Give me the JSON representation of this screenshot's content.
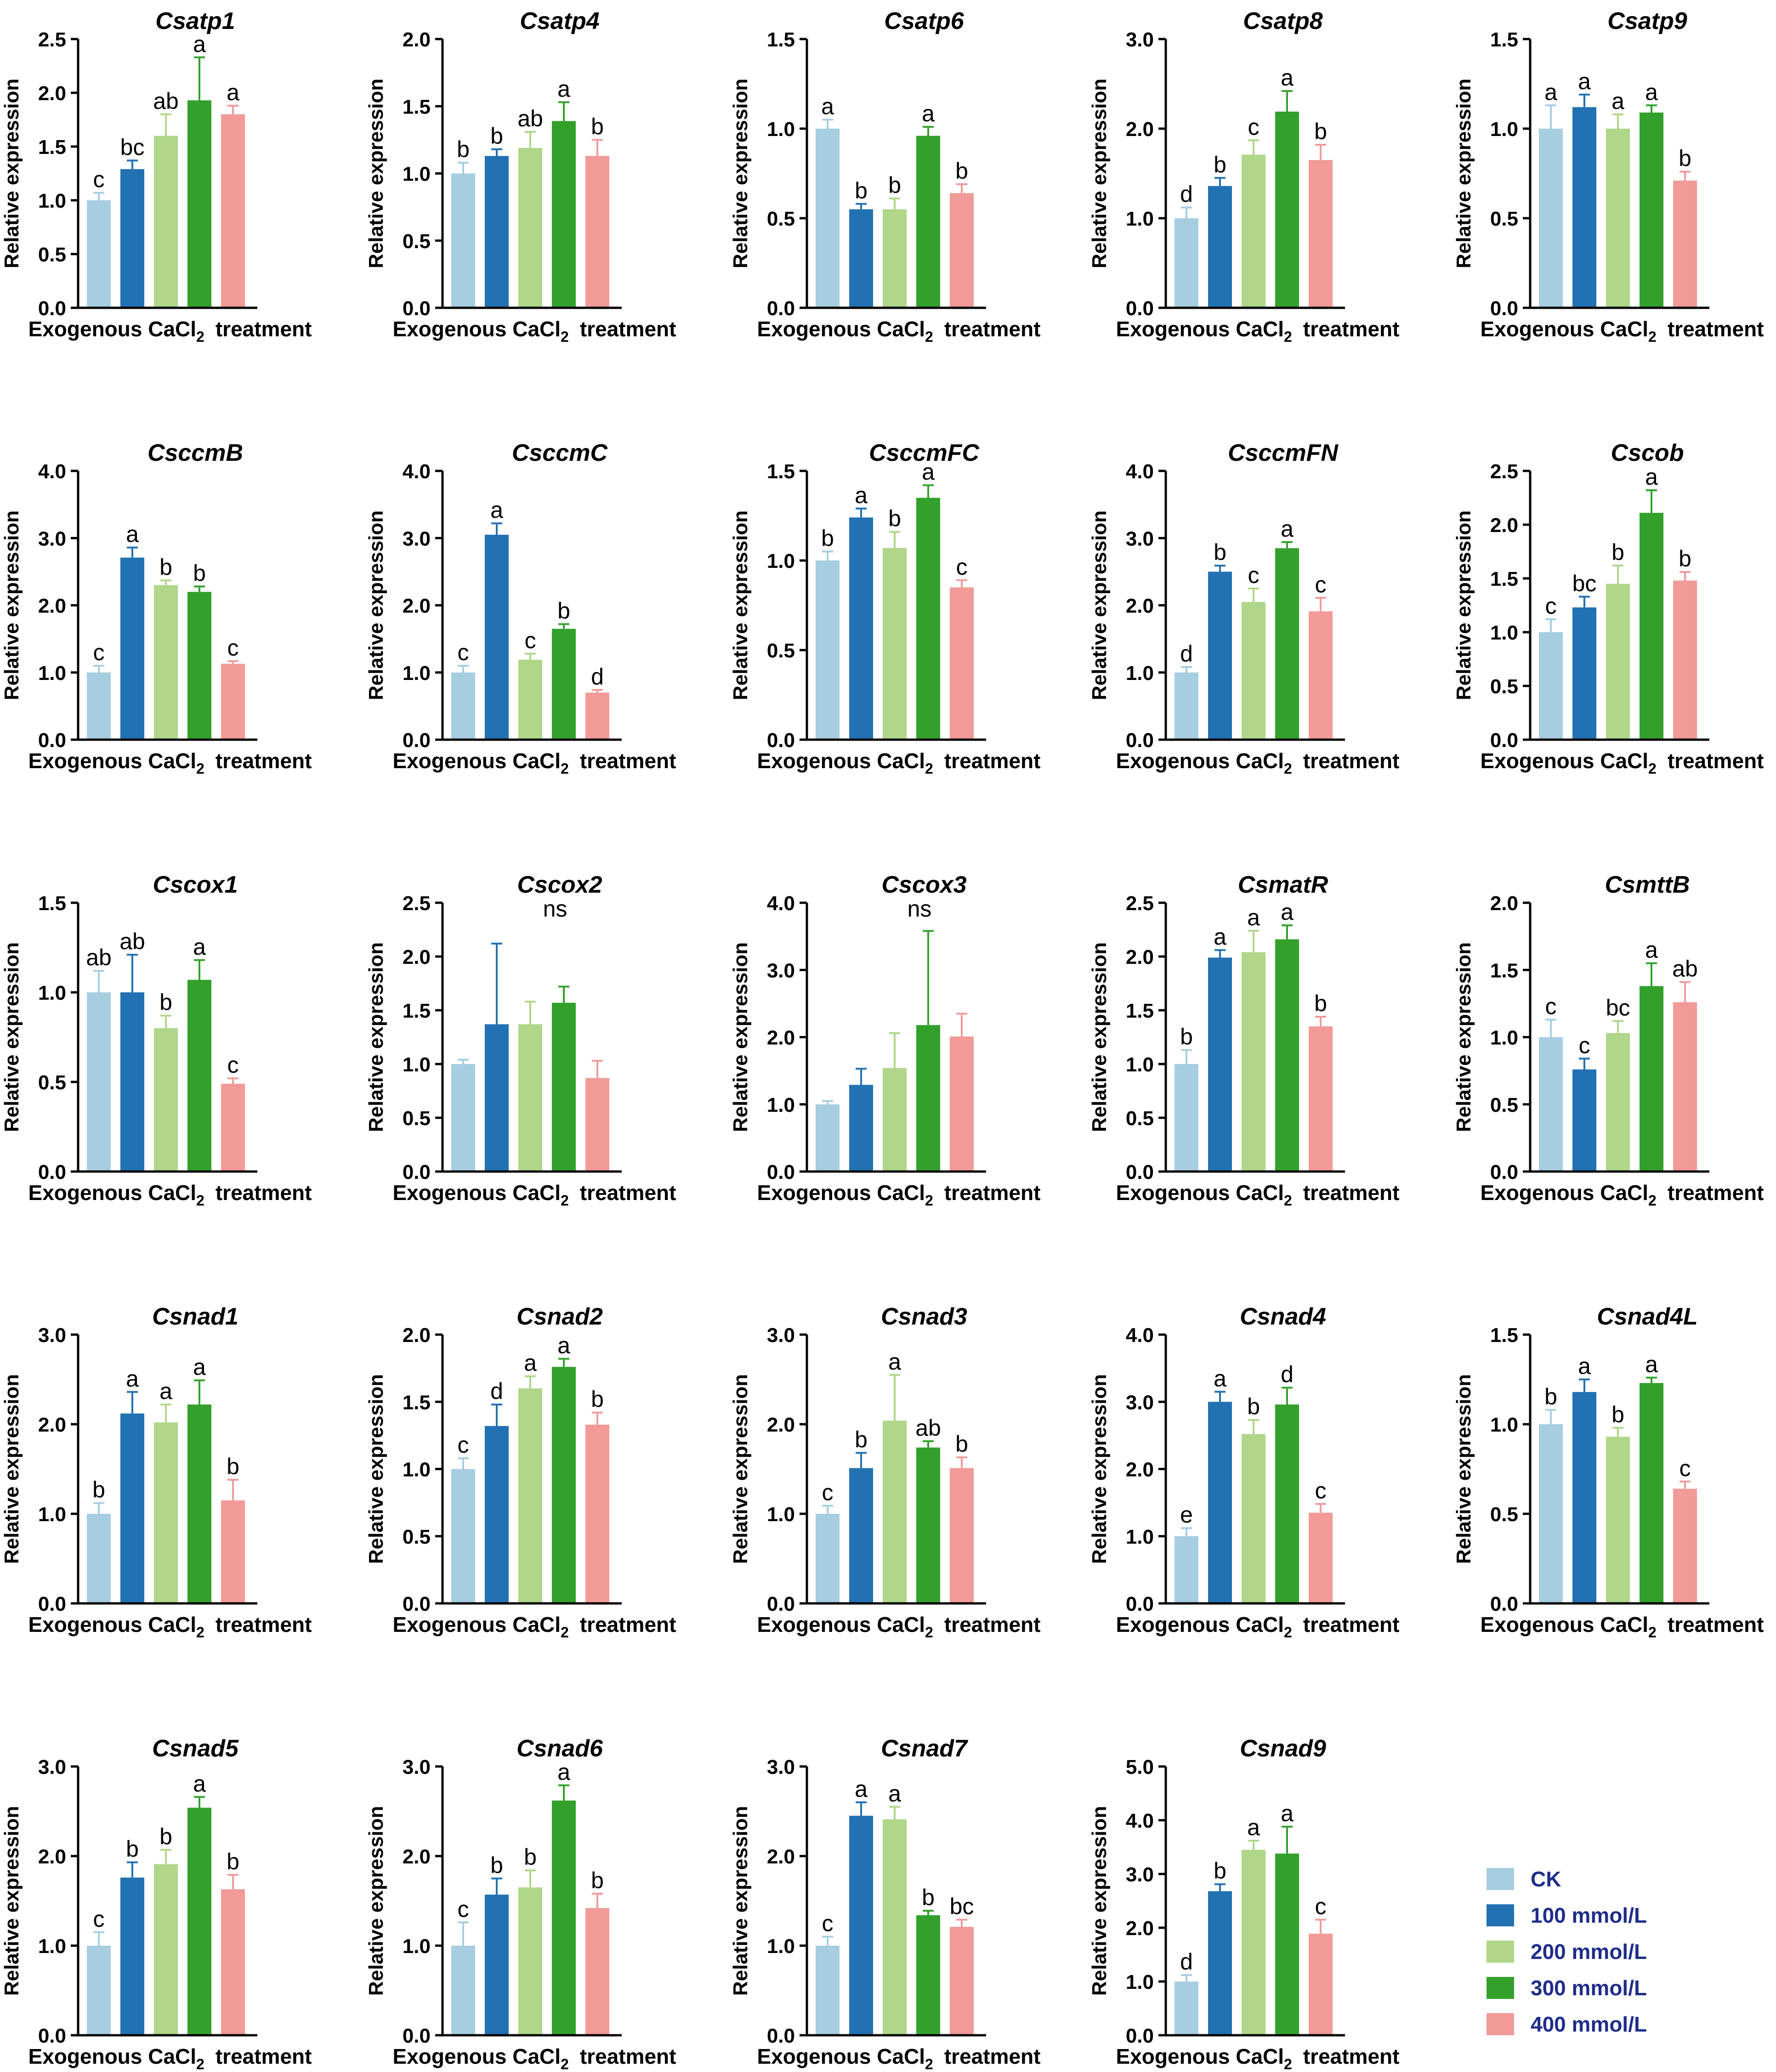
{
  "figure": {
    "ylabel": "Relative expression",
    "xlabel_prefix": "Exogenous CaCl",
    "xlabel_subscript": "2",
    "xlabel_suffix": "treatment"
  },
  "legend": {
    "items": [
      {
        "label": "CK",
        "color": "#a6cde0"
      },
      {
        "label": "100 mmol/L",
        "color": "#2271b3"
      },
      {
        "label": "200 mmol/L",
        "color": "#afd689"
      },
      {
        "label": "300 mmol/L",
        "color": "#33a02c"
      },
      {
        "label": "400 mmol/L",
        "color": "#f19a98"
      }
    ]
  },
  "chart_data": [
    {
      "type": "bar",
      "title": "Csatp1",
      "ylim": [
        0,
        2.5
      ],
      "ticks": [
        "0.0",
        "0.5",
        "1.0",
        "1.5",
        "2.0",
        "2.5"
      ],
      "values": [
        1.0,
        1.29,
        1.6,
        1.93,
        1.8
      ],
      "errors": [
        0.07,
        0.08,
        0.2,
        0.4,
        0.08
      ],
      "letters": [
        "c",
        "bc",
        "ab",
        "a",
        "a"
      ],
      "note": ""
    },
    {
      "type": "bar",
      "title": "Csatp4",
      "ylim": [
        0,
        2.0
      ],
      "ticks": [
        "0.0",
        "0.5",
        "1.0",
        "1.5",
        "2.0"
      ],
      "values": [
        1.0,
        1.13,
        1.19,
        1.39,
        1.13
      ],
      "errors": [
        0.08,
        0.05,
        0.12,
        0.14,
        0.12
      ],
      "letters": [
        "b",
        "b",
        "ab",
        "a",
        "b"
      ],
      "note": ""
    },
    {
      "type": "bar",
      "title": "Csatp6",
      "ylim": [
        0,
        1.5
      ],
      "ticks": [
        "0.0",
        "0.5",
        "1.0",
        "1.5"
      ],
      "values": [
        1.0,
        0.55,
        0.55,
        0.96,
        0.64
      ],
      "errors": [
        0.05,
        0.03,
        0.06,
        0.05,
        0.05
      ],
      "letters": [
        "a",
        "b",
        "b",
        "a",
        "b"
      ],
      "note": ""
    },
    {
      "type": "bar",
      "title": "Csatp8",
      "ylim": [
        0,
        3.0
      ],
      "ticks": [
        "0.0",
        "1.0",
        "2.0",
        "3.0"
      ],
      "values": [
        1.0,
        1.36,
        1.71,
        2.19,
        1.65
      ],
      "errors": [
        0.12,
        0.09,
        0.16,
        0.23,
        0.17
      ],
      "letters": [
        "d",
        "b",
        "c",
        "a",
        "b"
      ],
      "note": ""
    },
    {
      "type": "bar",
      "title": "Csatp9",
      "ylim": [
        0,
        1.5
      ],
      "ticks": [
        "0.0",
        "0.5",
        "1.0",
        "1.5"
      ],
      "values": [
        1.0,
        1.12,
        1.0,
        1.09,
        0.71
      ],
      "errors": [
        0.13,
        0.07,
        0.08,
        0.04,
        0.05
      ],
      "letters": [
        "a",
        "a",
        "a",
        "a",
        "b"
      ],
      "note": ""
    },
    {
      "type": "bar",
      "title": "CsccmB",
      "ylim": [
        0,
        4.0
      ],
      "ticks": [
        "0.0",
        "1.0",
        "2.0",
        "3.0",
        "4.0"
      ],
      "values": [
        1.0,
        2.71,
        2.3,
        2.2,
        1.13
      ],
      "errors": [
        0.1,
        0.15,
        0.07,
        0.08,
        0.04
      ],
      "letters": [
        "c",
        "a",
        "b",
        "b",
        "c"
      ],
      "note": ""
    },
    {
      "type": "bar",
      "title": "CsccmC",
      "ylim": [
        0,
        4.0
      ],
      "ticks": [
        "0.0",
        "1.0",
        "2.0",
        "3.0",
        "4.0"
      ],
      "values": [
        1.0,
        3.05,
        1.19,
        1.65,
        0.7
      ],
      "errors": [
        0.1,
        0.17,
        0.09,
        0.07,
        0.04
      ],
      "letters": [
        "c",
        "a",
        "c",
        "b",
        "d"
      ],
      "note": ""
    },
    {
      "type": "bar",
      "title": "CsccmFC",
      "ylim": [
        0,
        1.5
      ],
      "ticks": [
        "0.0",
        "0.5",
        "1.0",
        "1.5"
      ],
      "values": [
        1.0,
        1.24,
        1.07,
        1.35,
        0.85
      ],
      "errors": [
        0.05,
        0.05,
        0.09,
        0.07,
        0.04
      ],
      "letters": [
        "b",
        "a",
        "b",
        "a",
        "c"
      ],
      "note": ""
    },
    {
      "type": "bar",
      "title": "CsccmFN",
      "ylim": [
        0,
        4.0
      ],
      "ticks": [
        "0.0",
        "1.0",
        "2.0",
        "3.0",
        "4.0"
      ],
      "values": [
        1.0,
        2.5,
        2.05,
        2.85,
        1.91
      ],
      "errors": [
        0.08,
        0.09,
        0.2,
        0.09,
        0.2
      ],
      "letters": [
        "d",
        "b",
        "c",
        "a",
        "c"
      ],
      "note": ""
    },
    {
      "type": "bar",
      "title": "Cscob",
      "ylim": [
        0,
        2.5
      ],
      "ticks": [
        "0.0",
        "0.5",
        "1.0",
        "1.5",
        "2.0",
        "2.5"
      ],
      "values": [
        1.0,
        1.23,
        1.45,
        2.11,
        1.48
      ],
      "errors": [
        0.12,
        0.1,
        0.17,
        0.21,
        0.08
      ],
      "letters": [
        "c",
        "bc",
        "b",
        "a",
        "b"
      ],
      "note": ""
    },
    {
      "type": "bar",
      "title": "Cscox1",
      "ylim": [
        0,
        1.5
      ],
      "ticks": [
        "0.0",
        "0.5",
        "1.0",
        "1.5"
      ],
      "values": [
        1.0,
        1.0,
        0.8,
        1.07,
        0.49
      ],
      "errors": [
        0.12,
        0.21,
        0.07,
        0.11,
        0.03
      ],
      "letters": [
        "ab",
        "ab",
        "b",
        "a",
        "c"
      ],
      "note": ""
    },
    {
      "type": "bar",
      "title": "Cscox2",
      "ylim": [
        0,
        2.5
      ],
      "ticks": [
        "0.0",
        "0.5",
        "1.0",
        "1.5",
        "2.0",
        "2.5"
      ],
      "values": [
        1.0,
        1.37,
        1.37,
        1.57,
        0.87
      ],
      "errors": [
        0.04,
        0.75,
        0.21,
        0.15,
        0.16
      ],
      "letters": [
        "",
        "",
        "",
        "",
        ""
      ],
      "note": "ns"
    },
    {
      "type": "bar",
      "title": "Cscox3",
      "ylim": [
        0,
        4.0
      ],
      "ticks": [
        "0.0",
        "1.0",
        "2.0",
        "3.0",
        "4.0"
      ],
      "values": [
        1.0,
        1.29,
        1.54,
        2.18,
        2.01
      ],
      "errors": [
        0.05,
        0.24,
        0.52,
        1.4,
        0.34
      ],
      "letters": [
        "",
        "",
        "",
        "",
        ""
      ],
      "note": "ns"
    },
    {
      "type": "bar",
      "title": "CsmatR",
      "ylim": [
        0,
        2.5
      ],
      "ticks": [
        "0.0",
        "0.5",
        "1.0",
        "1.5",
        "2.0",
        "2.5"
      ],
      "values": [
        1.0,
        1.99,
        2.04,
        2.16,
        1.35
      ],
      "errors": [
        0.13,
        0.07,
        0.2,
        0.13,
        0.09
      ],
      "letters": [
        "b",
        "a",
        "a",
        "a",
        "b"
      ],
      "note": ""
    },
    {
      "type": "bar",
      "title": "CsmttB",
      "ylim": [
        0,
        2.0
      ],
      "ticks": [
        "0.0",
        "0.5",
        "1.0",
        "1.5",
        "2.0"
      ],
      "values": [
        1.0,
        0.76,
        1.03,
        1.38,
        1.26
      ],
      "errors": [
        0.13,
        0.08,
        0.09,
        0.17,
        0.15
      ],
      "letters": [
        "c",
        "c",
        "bc",
        "a",
        "ab"
      ],
      "note": ""
    },
    {
      "type": "bar",
      "title": "Csnad1",
      "ylim": [
        0,
        3.0
      ],
      "ticks": [
        "0.0",
        "1.0",
        "2.0",
        "3.0"
      ],
      "values": [
        1.0,
        2.12,
        2.02,
        2.22,
        1.15
      ],
      "errors": [
        0.12,
        0.24,
        0.2,
        0.27,
        0.23
      ],
      "letters": [
        "b",
        "a",
        "a",
        "a",
        "b"
      ],
      "note": ""
    },
    {
      "type": "bar",
      "title": "Csnad2",
      "ylim": [
        0,
        2.0
      ],
      "ticks": [
        "0.0",
        "0.5",
        "1.0",
        "1.5",
        "2.0"
      ],
      "values": [
        1.0,
        1.32,
        1.6,
        1.76,
        1.33
      ],
      "errors": [
        0.08,
        0.16,
        0.09,
        0.06,
        0.09
      ],
      "letters": [
        "c",
        "d",
        "a",
        "a",
        "b"
      ],
      "note": ""
    },
    {
      "type": "bar",
      "title": "Csnad3",
      "ylim": [
        0,
        3.0
      ],
      "ticks": [
        "0.0",
        "1.0",
        "2.0",
        "3.0"
      ],
      "values": [
        1.0,
        1.51,
        2.04,
        1.74,
        1.51
      ],
      "errors": [
        0.09,
        0.17,
        0.51,
        0.07,
        0.12
      ],
      "letters": [
        "c",
        "b",
        "a",
        "ab",
        "b"
      ],
      "note": ""
    },
    {
      "type": "bar",
      "title": "Csnad4",
      "ylim": [
        0,
        4.0
      ],
      "ticks": [
        "0.0",
        "1.0",
        "2.0",
        "3.0",
        "4.0"
      ],
      "values": [
        1.0,
        3.0,
        2.52,
        2.96,
        1.35
      ],
      "errors": [
        0.12,
        0.15,
        0.21,
        0.25,
        0.13
      ],
      "letters": [
        "e",
        "a",
        "b",
        "d",
        "c"
      ],
      "note": ""
    },
    {
      "type": "bar",
      "title": "Csnad4L",
      "ylim": [
        0,
        1.5
      ],
      "ticks": [
        "0.0",
        "0.5",
        "1.0",
        "1.5"
      ],
      "values": [
        1.0,
        1.18,
        0.93,
        1.23,
        0.64
      ],
      "errors": [
        0.08,
        0.07,
        0.05,
        0.03,
        0.04
      ],
      "letters": [
        "b",
        "a",
        "b",
        "a",
        "c"
      ],
      "note": ""
    },
    {
      "type": "bar",
      "title": "Csnad5",
      "ylim": [
        0,
        3.0
      ],
      "ticks": [
        "0.0",
        "1.0",
        "2.0",
        "3.0"
      ],
      "values": [
        1.0,
        1.76,
        1.91,
        2.54,
        1.63
      ],
      "errors": [
        0.15,
        0.17,
        0.16,
        0.12,
        0.16
      ],
      "letters": [
        "c",
        "b",
        "b",
        "a",
        "b"
      ],
      "note": ""
    },
    {
      "type": "bar",
      "title": "Csnad6",
      "ylim": [
        0,
        3.0
      ],
      "ticks": [
        "0.0",
        "1.0",
        "2.0",
        "3.0"
      ],
      "values": [
        1.0,
        1.57,
        1.65,
        2.62,
        1.42
      ],
      "errors": [
        0.26,
        0.18,
        0.19,
        0.17,
        0.16
      ],
      "letters": [
        "c",
        "b",
        "b",
        "a",
        "b"
      ],
      "note": ""
    },
    {
      "type": "bar",
      "title": "Csnad7",
      "ylim": [
        0,
        3.0
      ],
      "ticks": [
        "0.0",
        "1.0",
        "2.0",
        "3.0"
      ],
      "values": [
        1.0,
        2.45,
        2.41,
        1.34,
        1.21
      ],
      "errors": [
        0.1,
        0.15,
        0.14,
        0.05,
        0.08
      ],
      "letters": [
        "c",
        "a",
        "a",
        "b",
        "bc"
      ],
      "note": ""
    },
    {
      "type": "bar",
      "title": "Csnad9",
      "ylim": [
        0,
        5.0
      ],
      "ticks": [
        "0.0",
        "1.0",
        "2.0",
        "3.0",
        "4.0",
        "5.0"
      ],
      "values": [
        1.0,
        2.68,
        3.45,
        3.38,
        1.89
      ],
      "errors": [
        0.12,
        0.13,
        0.17,
        0.5,
        0.26
      ],
      "letters": [
        "d",
        "b",
        "a",
        "a",
        "c"
      ],
      "note": ""
    }
  ]
}
